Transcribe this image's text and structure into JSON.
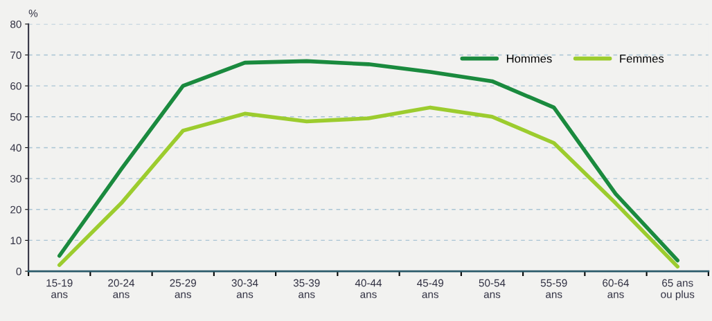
{
  "chart_data": {
    "type": "line",
    "ylabel": "%",
    "categories": [
      "15-19\nans",
      "20-24\nans",
      "25-29\nans",
      "30-34\nans",
      "35-39\nans",
      "40-44\nans",
      "45-49\nans",
      "50-54\nans",
      "55-59\nans",
      "60-64\nans",
      "65 ans\nou plus"
    ],
    "series": [
      {
        "name": "Hommes",
        "color": "#1a8a3e",
        "values": [
          5,
          33,
          60,
          67.5,
          68,
          67,
          64.5,
          61.5,
          53,
          25,
          3.5
        ]
      },
      {
        "name": "Femmes",
        "color": "#9ccc2e",
        "values": [
          2,
          22,
          45.5,
          51,
          48.5,
          49.5,
          53,
          50,
          41.5,
          22,
          1.5
        ]
      }
    ],
    "ylim": [
      0,
      80
    ],
    "yticks": [
      0,
      10,
      20,
      30,
      40,
      50,
      60,
      70,
      80
    ],
    "grid": "y",
    "legend": "top right",
    "marker": "none",
    "line_style": "solid"
  }
}
